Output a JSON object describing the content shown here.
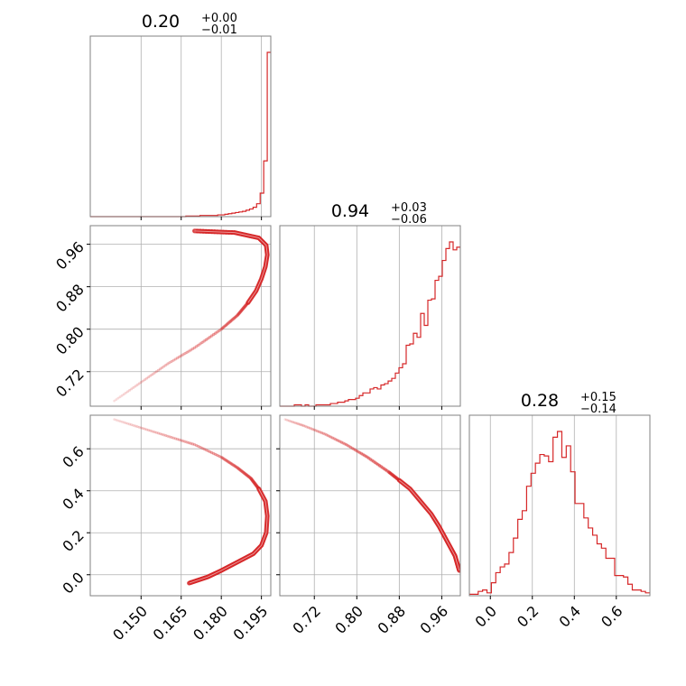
{
  "chart_data": {
    "type": "corner",
    "line_color": "#d62728",
    "grid": true,
    "parameters": [
      {
        "title": {
          "median": "0.20",
          "plus": "+0.00",
          "minus": "−0.01"
        },
        "range": [
          0.131,
          0.1985
        ],
        "ticks": [
          0.15,
          0.165,
          0.18,
          0.195
        ],
        "tick_labels": [
          "0.150",
          "0.165",
          "0.180",
          "0.195"
        ]
      },
      {
        "title": {
          "median": "0.94",
          "plus": "+0.03",
          "minus": "−0.06"
        },
        "range": [
          0.655,
          0.995
        ],
        "ticks": [
          0.72,
          0.8,
          0.88,
          0.96
        ],
        "tick_labels": [
          "0.72",
          "0.80",
          "0.88",
          "0.96"
        ]
      },
      {
        "title": {
          "median": "0.28",
          "plus": "+0.15",
          "minus": "−0.14"
        },
        "range": [
          -0.1,
          0.76
        ],
        "ticks": [
          0.0,
          0.2,
          0.4,
          0.6
        ],
        "tick_labels": [
          "0.0",
          "0.2",
          "0.4",
          "0.6"
        ]
      }
    ],
    "histograms": [
      {
        "parameter": 0,
        "edges": [
          0.131,
          0.1985
        ],
        "counts": [
          0,
          0,
          0,
          0,
          0,
          0,
          0,
          0,
          0,
          0,
          0,
          0,
          0,
          0,
          0,
          0,
          0,
          0,
          0,
          0,
          0,
          0,
          0,
          0,
          0,
          0,
          0,
          1,
          1,
          1,
          1,
          2,
          2,
          2,
          2,
          2,
          3,
          3,
          4,
          5,
          6,
          7,
          8,
          9,
          11,
          13,
          16,
          22,
          40,
          95,
          280
        ]
      },
      {
        "parameter": 1,
        "edges": [
          0.655,
          0.995
        ],
        "counts": [
          0,
          0,
          0,
          0,
          1,
          1,
          0,
          1,
          0,
          0,
          1,
          1,
          1,
          1,
          2,
          2,
          3,
          3,
          4,
          5,
          5,
          6,
          8,
          10,
          10,
          13,
          14,
          13,
          16,
          17,
          19,
          21,
          25,
          29,
          32,
          46,
          47,
          55,
          52,
          70,
          61,
          80,
          81,
          95,
          98,
          110,
          119,
          124,
          118,
          120
        ]
      },
      {
        "parameter": 2,
        "edges": [
          -0.1,
          0.76
        ],
        "counts": [
          1,
          1,
          3,
          4,
          2,
          9,
          16,
          20,
          22,
          30,
          40,
          53,
          59,
          76,
          85,
          92,
          98,
          97,
          93,
          110,
          114,
          96,
          104,
          86,
          64,
          64,
          54,
          47,
          42,
          36,
          33,
          26,
          26,
          14,
          14,
          13,
          8,
          4,
          4,
          3,
          2
        ]
      }
    ],
    "scatter_panels": [
      {
        "x_parameter": 0,
        "y_parameter": 1,
        "curve": [
          [
            0.14,
            0.665
          ],
          [
            0.15,
            0.7
          ],
          [
            0.16,
            0.735
          ],
          [
            0.17,
            0.765
          ],
          [
            0.18,
            0.8
          ],
          [
            0.186,
            0.826
          ],
          [
            0.19,
            0.85
          ],
          [
            0.193,
            0.872
          ],
          [
            0.195,
            0.895
          ],
          [
            0.1965,
            0.918
          ],
          [
            0.1972,
            0.94
          ],
          [
            0.1968,
            0.958
          ],
          [
            0.194,
            0.972
          ],
          [
            0.185,
            0.982
          ],
          [
            0.17,
            0.985
          ]
        ]
      },
      {
        "x_parameter": 0,
        "y_parameter": 2,
        "curve": [
          [
            0.14,
            0.74
          ],
          [
            0.15,
            0.7
          ],
          [
            0.16,
            0.66
          ],
          [
            0.17,
            0.62
          ],
          [
            0.18,
            0.56
          ],
          [
            0.186,
            0.51
          ],
          [
            0.191,
            0.46
          ],
          [
            0.194,
            0.41
          ],
          [
            0.1965,
            0.35
          ],
          [
            0.1972,
            0.28
          ],
          [
            0.1968,
            0.2
          ],
          [
            0.195,
            0.14
          ],
          [
            0.192,
            0.1
          ],
          [
            0.186,
            0.06
          ],
          [
            0.18,
            0.02
          ],
          [
            0.175,
            -0.01
          ],
          [
            0.168,
            -0.04
          ]
        ]
      },
      {
        "x_parameter": 1,
        "y_parameter": 2,
        "curve": [
          [
            0.665,
            0.74
          ],
          [
            0.7,
            0.71
          ],
          [
            0.74,
            0.67
          ],
          [
            0.78,
            0.62
          ],
          [
            0.82,
            0.56
          ],
          [
            0.86,
            0.49
          ],
          [
            0.88,
            0.45
          ],
          [
            0.9,
            0.41
          ],
          [
            0.92,
            0.35
          ],
          [
            0.94,
            0.29
          ],
          [
            0.955,
            0.23
          ],
          [
            0.97,
            0.16
          ],
          [
            0.985,
            0.09
          ],
          [
            0.993,
            0.02
          ]
        ]
      }
    ]
  }
}
